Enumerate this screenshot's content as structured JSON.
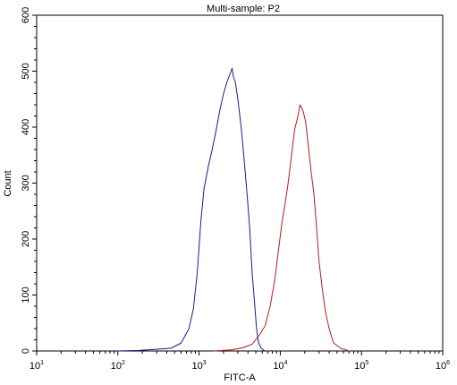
{
  "chart_data": {
    "type": "line",
    "title": "Multi-sample: P2",
    "xlabel": "FITC-A",
    "ylabel": "Count",
    "xscale": "log",
    "xlim": [
      10,
      1000000
    ],
    "ylim": [
      0,
      600
    ],
    "x_ticks": [
      {
        "base": "10",
        "exp": "1"
      },
      {
        "base": "10",
        "exp": "2"
      },
      {
        "base": "10",
        "exp": "3"
      },
      {
        "base": "10",
        "exp": "4"
      },
      {
        "base": "10",
        "exp": "5"
      },
      {
        "base": "10",
        "exp": "6"
      }
    ],
    "y_ticks": [
      "0",
      "100",
      "200",
      "300",
      "400",
      "500",
      "600"
    ],
    "grid": false,
    "legend": "none",
    "series": [
      {
        "color": "#1a1a8c",
        "points": [
          [
            100,
            0
          ],
          [
            180,
            1
          ],
          [
            300,
            3
          ],
          [
            450,
            5
          ],
          [
            600,
            14
          ],
          [
            750,
            40
          ],
          [
            850,
            75
          ],
          [
            950,
            140
          ],
          [
            1050,
            230
          ],
          [
            1150,
            290
          ],
          [
            1300,
            330
          ],
          [
            1450,
            360
          ],
          [
            1600,
            390
          ],
          [
            1800,
            430
          ],
          [
            2000,
            460
          ],
          [
            2200,
            480
          ],
          [
            2400,
            495
          ],
          [
            2550,
            505
          ],
          [
            2650,
            490
          ],
          [
            2800,
            480
          ],
          [
            3000,
            450
          ],
          [
            3300,
            400
          ],
          [
            3600,
            340
          ],
          [
            3900,
            280
          ],
          [
            4200,
            220
          ],
          [
            4500,
            140
          ],
          [
            4800,
            90
          ],
          [
            5100,
            40
          ],
          [
            5400,
            15
          ],
          [
            5800,
            5
          ],
          [
            6500,
            0
          ]
        ]
      },
      {
        "color": "#b01f1f",
        "points": [
          [
            1500,
            0
          ],
          [
            2500,
            2
          ],
          [
            3500,
            6
          ],
          [
            4500,
            12
          ],
          [
            5500,
            28
          ],
          [
            6500,
            45
          ],
          [
            7500,
            80
          ],
          [
            8500,
            125
          ],
          [
            9500,
            180
          ],
          [
            10500,
            230
          ],
          [
            11500,
            265
          ],
          [
            12500,
            300
          ],
          [
            13500,
            340
          ],
          [
            15000,
            395
          ],
          [
            16500,
            420
          ],
          [
            17500,
            440
          ],
          [
            19000,
            430
          ],
          [
            20500,
            410
          ],
          [
            22000,
            370
          ],
          [
            24000,
            320
          ],
          [
            26000,
            280
          ],
          [
            28000,
            220
          ],
          [
            30000,
            160
          ],
          [
            33000,
            110
          ],
          [
            36000,
            70
          ],
          [
            40000,
            40
          ],
          [
            45000,
            15
          ],
          [
            55000,
            5
          ],
          [
            70000,
            0
          ]
        ]
      }
    ]
  }
}
